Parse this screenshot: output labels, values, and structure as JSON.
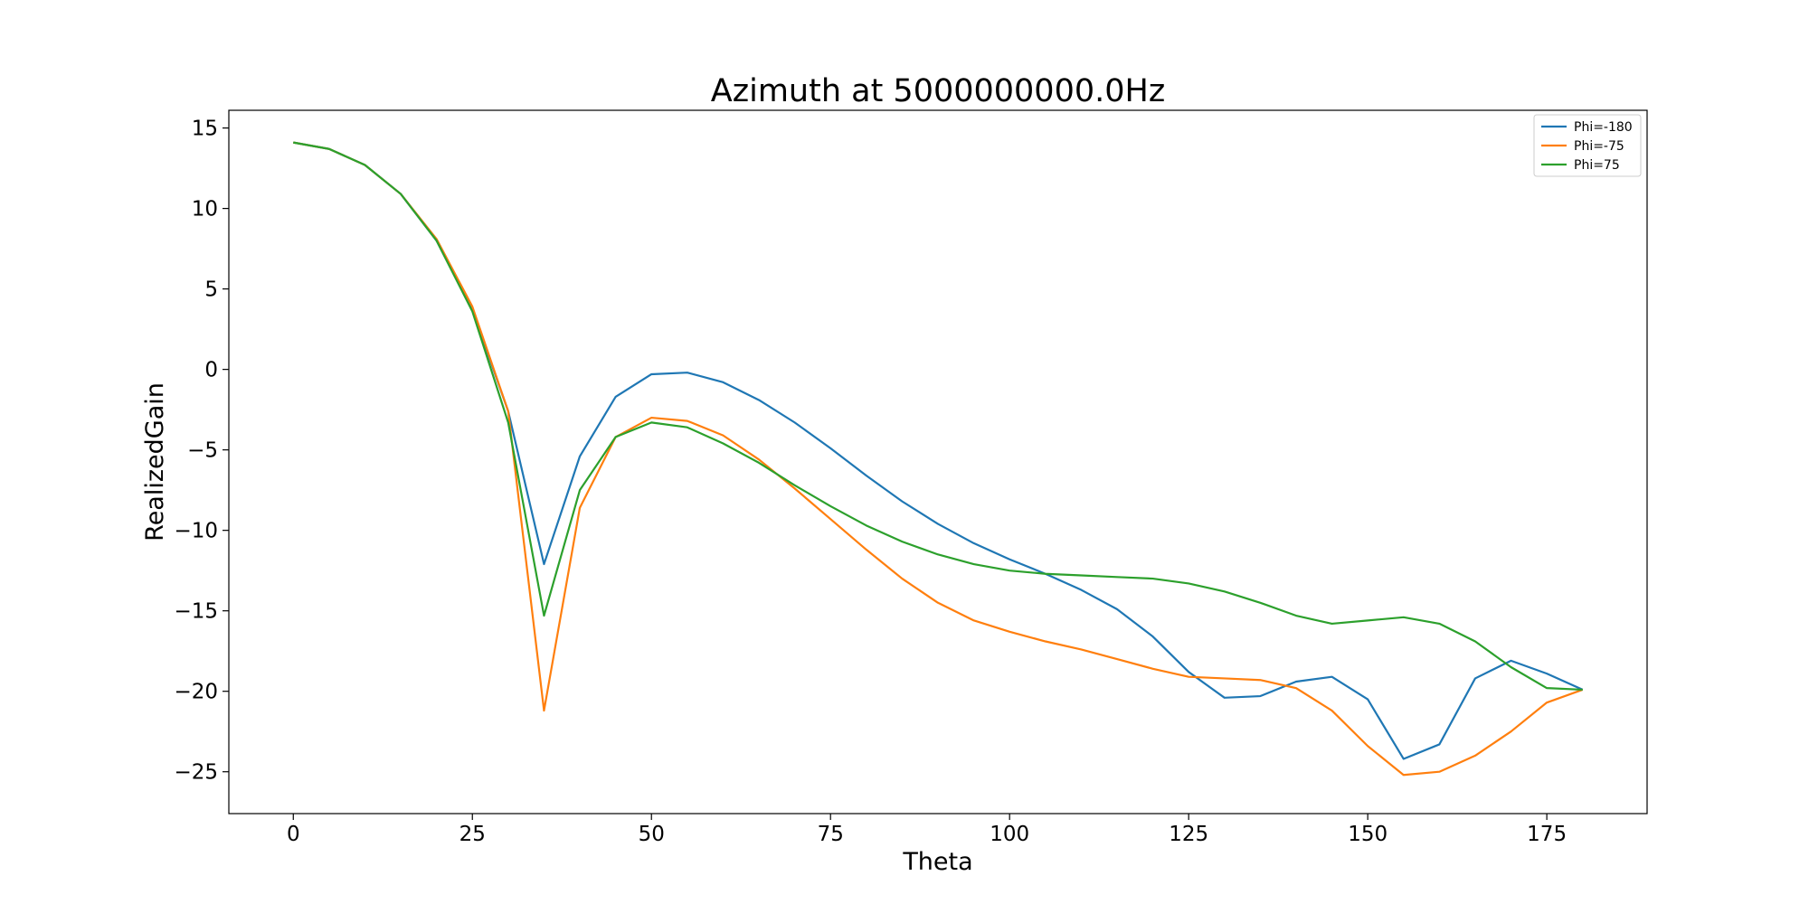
{
  "chart_data": {
    "type": "line",
    "title": "Azimuth at 5000000000.0Hz",
    "xlabel": "Theta",
    "ylabel": "RealizedGain",
    "xlim": [
      -9,
      189
    ],
    "ylim": [
      -27.6,
      16.1
    ],
    "xticks": [
      0,
      25,
      50,
      75,
      100,
      125,
      150,
      175
    ],
    "yticks": [
      15,
      10,
      5,
      0,
      -5,
      -10,
      -15,
      -20,
      -25
    ],
    "grid": false,
    "legend_position": "top-right",
    "x": [
      0,
      5,
      10,
      15,
      20,
      25,
      30,
      35,
      40,
      45,
      50,
      55,
      60,
      65,
      70,
      75,
      80,
      85,
      90,
      95,
      100,
      105,
      110,
      115,
      120,
      125,
      130,
      135,
      140,
      145,
      150,
      155,
      160,
      165,
      170,
      175,
      180
    ],
    "series": [
      {
        "name": "Phi=-180",
        "color": "#1f77b4",
        "values": [
          14.1,
          13.7,
          12.7,
          10.9,
          8.0,
          3.7,
          -2.6,
          -12.1,
          -5.4,
          -1.7,
          -0.3,
          -0.2,
          -0.8,
          -1.9,
          -3.3,
          -4.9,
          -6.6,
          -8.2,
          -9.6,
          -10.8,
          -11.8,
          -12.7,
          -13.7,
          -14.9,
          -16.6,
          -18.8,
          -20.4,
          -20.3,
          -19.4,
          -19.1,
          -20.5,
          -24.2,
          -23.3,
          -19.2,
          -18.1,
          -18.9,
          -19.9
        ]
      },
      {
        "name": "Phi=-75",
        "color": "#ff7f0e",
        "values": [
          14.1,
          13.7,
          12.7,
          10.9,
          8.1,
          3.9,
          -2.6,
          -21.2,
          -8.6,
          -4.2,
          -3.0,
          -3.2,
          -4.1,
          -5.6,
          -7.4,
          -9.3,
          -11.2,
          -13.0,
          -14.5,
          -15.6,
          -16.3,
          -16.9,
          -17.4,
          -18.0,
          -18.6,
          -19.1,
          -19.2,
          -19.3,
          -19.8,
          -21.2,
          -23.4,
          -25.2,
          -25.0,
          -24.0,
          -22.5,
          -20.7,
          -19.9
        ]
      },
      {
        "name": "Phi=75",
        "color": "#2ca02c",
        "values": [
          14.1,
          13.7,
          12.7,
          10.9,
          8.0,
          3.6,
          -3.3,
          -15.3,
          -7.5,
          -4.2,
          -3.3,
          -3.6,
          -4.6,
          -5.8,
          -7.2,
          -8.5,
          -9.7,
          -10.7,
          -11.5,
          -12.1,
          -12.5,
          -12.7,
          -12.8,
          -12.9,
          -13.0,
          -13.3,
          -13.8,
          -14.5,
          -15.3,
          -15.8,
          -15.6,
          -15.4,
          -15.8,
          -16.9,
          -18.5,
          -19.8,
          -19.9
        ]
      }
    ]
  }
}
